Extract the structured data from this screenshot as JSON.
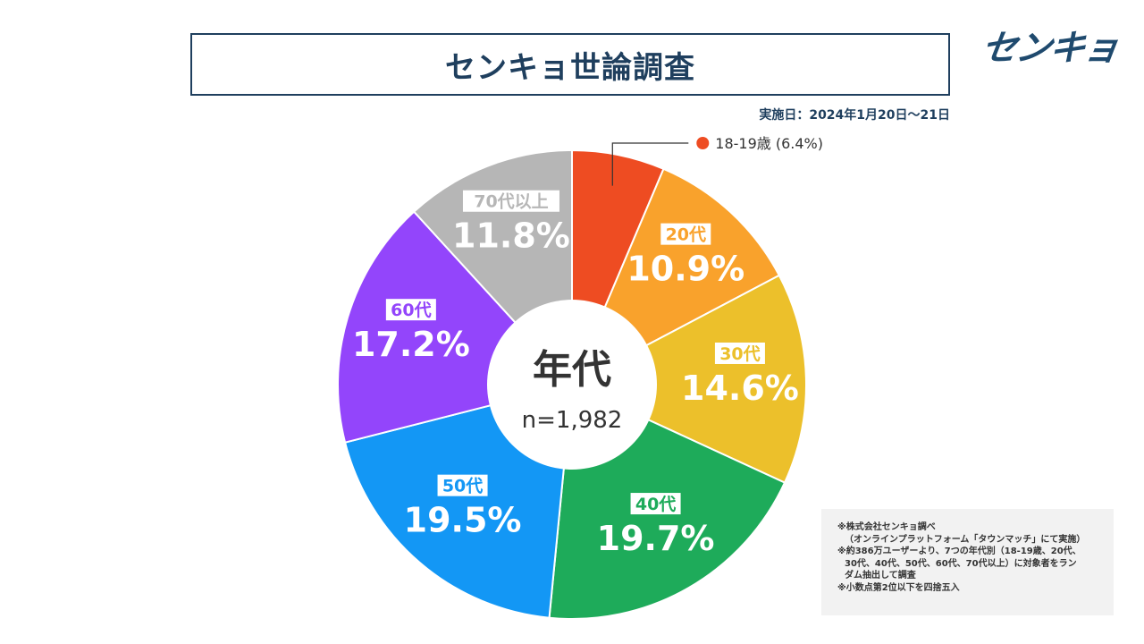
{
  "header": {
    "title": "センキョ世論調査",
    "logo": "センキョ",
    "survey_date": "実施日：2024年1月20日～21日"
  },
  "chart_data": {
    "type": "pie",
    "style": "donut",
    "title": "年代",
    "center_label": "年代",
    "center_sub": "n=1,982",
    "slices": [
      {
        "label": "18-19歳",
        "value": 6.4,
        "display": "6.4%",
        "color": "#ee4c22",
        "callout": "18-19歳 (6.4%)"
      },
      {
        "label": "20代",
        "value": 10.9,
        "display": "10.9%",
        "color": "#f9a22c"
      },
      {
        "label": "30代",
        "value": 14.6,
        "display": "14.6%",
        "color": "#ecc02b"
      },
      {
        "label": "40代",
        "value": 19.7,
        "display": "19.7%",
        "color": "#1eab5a"
      },
      {
        "label": "50代",
        "value": 19.5,
        "display": "19.5%",
        "color": "#1397f5"
      },
      {
        "label": "60代",
        "value": 17.2,
        "display": "17.2%",
        "color": "#9345fb"
      },
      {
        "label": "70代以上",
        "value": 11.8,
        "display": "11.8%",
        "color": "#b6b6b6"
      }
    ]
  },
  "notes": [
    "※株式会社センキョ調べ",
    "（オンラインプラットフォーム「タウンマッチ」にて実施）",
    "※約386万ユーザーより、7つの年代別（18-19歳、20代、",
    "30代、40代、50代、60代、70代以上）に対象者をラン",
    "ダム抽出して調査",
    "※小数点第2位以下を四捨五入"
  ]
}
